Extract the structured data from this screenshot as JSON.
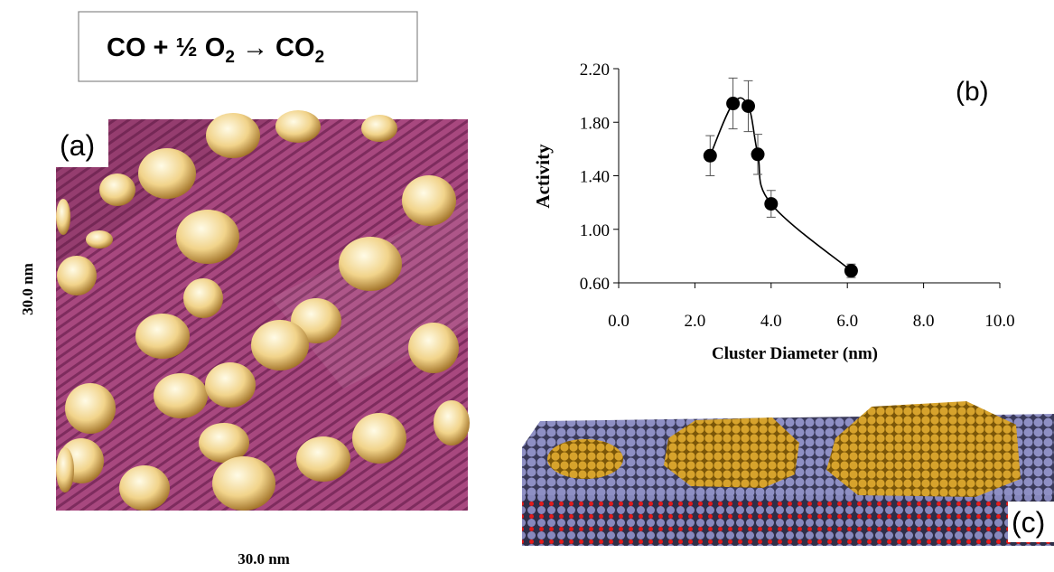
{
  "equation": [
    "CO + ½ O",
    "2",
    " → CO",
    "2"
  ],
  "panel_a": {
    "label": "(a)",
    "y_size": "30.0 nm",
    "x_size": "30.0 nm"
  },
  "panel_c": {
    "label": "(c)"
  },
  "chart_data": {
    "type": "line",
    "panel_label": "(b)",
    "x_label": "Cluster Diameter (nm)",
    "y_label": "Activity",
    "x": [
      2.4,
      3.0,
      3.4,
      3.65,
      4.0,
      6.1
    ],
    "values": [
      1.55,
      1.94,
      1.92,
      1.56,
      1.19,
      0.69
    ],
    "errors": [
      0.15,
      0.19,
      0.19,
      0.15,
      0.1,
      0.05
    ],
    "color": "#000000",
    "xlim": [
      0,
      10
    ],
    "xticks": [
      {
        "value": 0,
        "label": "0.0"
      },
      {
        "value": 2,
        "label": "2.0"
      },
      {
        "value": 4,
        "label": "4.0"
      },
      {
        "value": 6,
        "label": "6.0"
      },
      {
        "value": 8,
        "label": "8.0"
      },
      {
        "value": 10,
        "label": "10.0"
      }
    ],
    "ylim": [
      0.6,
      2.2
    ],
    "yticks": [
      {
        "value": 0.6,
        "label": "0.60"
      },
      {
        "value": 1.0,
        "label": "1.00"
      },
      {
        "value": 1.4,
        "label": "1.40"
      },
      {
        "value": 1.8,
        "label": "1.80"
      },
      {
        "value": 2.2,
        "label": "2.20"
      }
    ]
  }
}
